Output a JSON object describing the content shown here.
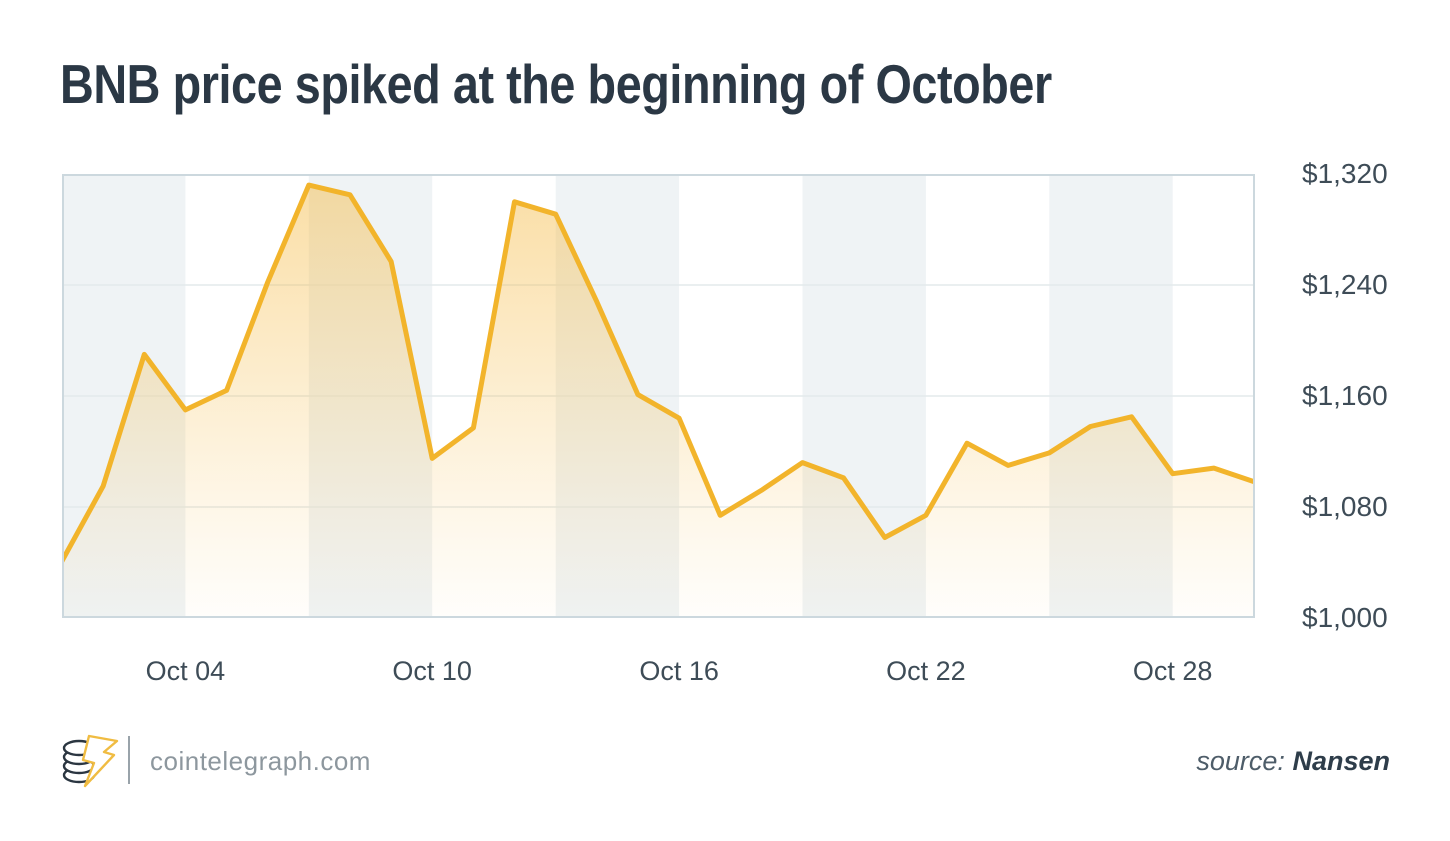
{
  "title": "BNB price spiked at the beginning of October",
  "footer": {
    "brand": "cointelegraph.com",
    "source_label": "source:",
    "source_value": "Nansen"
  },
  "chart_data": {
    "type": "line",
    "title": "BNB price spiked at the beginning of October",
    "series_name": "BNB price (USD)",
    "x": [
      "Oct 01",
      "Oct 02",
      "Oct 03",
      "Oct 04",
      "Oct 05",
      "Oct 06",
      "Oct 07",
      "Oct 08",
      "Oct 09",
      "Oct 10",
      "Oct 11",
      "Oct 12",
      "Oct 13",
      "Oct 14",
      "Oct 15",
      "Oct 16",
      "Oct 17",
      "Oct 18",
      "Oct 19",
      "Oct 20",
      "Oct 21",
      "Oct 22",
      "Oct 23",
      "Oct 24",
      "Oct 25",
      "Oct 26",
      "Oct 27",
      "Oct 28",
      "Oct 29",
      "Oct 30"
    ],
    "values": [
      1041,
      1095,
      1190,
      1150,
      1164,
      1242,
      1312,
      1305,
      1257,
      1115,
      1137,
      1300,
      1291,
      1228,
      1161,
      1144,
      1074,
      1092,
      1112,
      1101,
      1058,
      1074,
      1126,
      1110,
      1119,
      1138,
      1145,
      1104,
      1108,
      1098
    ],
    "ylim": [
      1000,
      1320
    ],
    "y_ticks": [
      {
        "label": "$1,320",
        "value": 1320
      },
      {
        "label": "$1,240",
        "value": 1240
      },
      {
        "label": "$1,160",
        "value": 1160
      },
      {
        "label": "$1,080",
        "value": 1080
      },
      {
        "label": "$1,000",
        "value": 1000
      }
    ],
    "x_ticks": [
      {
        "label": "Oct 04",
        "i": 3
      },
      {
        "label": "Oct 10",
        "i": 9
      },
      {
        "label": "Oct 16",
        "i": 15
      },
      {
        "label": "Oct 22",
        "i": 21
      },
      {
        "label": "Oct 28",
        "i": 27
      }
    ],
    "grid": "horizontal",
    "legend": "none",
    "background_bands": {
      "days_per_band": 3,
      "first_band_shaded": true
    },
    "colors": {
      "line": "#F2B42B",
      "fill_top": "rgba(245,187,70,0.48)",
      "fill_mid": "rgba(245,187,70,0.12)",
      "fill_bottom": "rgba(245,187,70,0.02)",
      "band": "#EFF3F5",
      "grid": "#E4EAEC",
      "border": "#CCD8DE",
      "title": "#2B3845",
      "tick": "#3E4C57"
    }
  }
}
